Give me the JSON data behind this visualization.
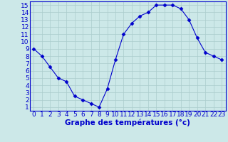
{
  "x": [
    0,
    1,
    2,
    3,
    4,
    5,
    6,
    7,
    8,
    9,
    10,
    11,
    12,
    13,
    14,
    15,
    16,
    17,
    18,
    19,
    20,
    21,
    22,
    23
  ],
  "y": [
    9.0,
    8.0,
    6.5,
    5.0,
    4.5,
    2.5,
    2.0,
    1.5,
    1.0,
    3.5,
    7.5,
    11.0,
    12.5,
    13.5,
    14.0,
    15.0,
    15.0,
    15.0,
    14.5,
    13.0,
    10.5,
    8.5,
    8.0,
    7.5
  ],
  "xlabel": "Graphe des températures (°c)",
  "xlim_min": -0.5,
  "xlim_max": 23.5,
  "ylim_min": 0.5,
  "ylim_max": 15.5,
  "yticks": [
    1,
    2,
    3,
    4,
    5,
    6,
    7,
    8,
    9,
    10,
    11,
    12,
    13,
    14,
    15
  ],
  "xticks": [
    0,
    1,
    2,
    3,
    4,
    5,
    6,
    7,
    8,
    9,
    10,
    11,
    12,
    13,
    14,
    15,
    16,
    17,
    18,
    19,
    20,
    21,
    22,
    23
  ],
  "line_color": "#0000cc",
  "marker": "D",
  "marker_size": 2.5,
  "bg_color": "#cce8e8",
  "grid_color": "#aacccc",
  "axis_label_color": "#0000cc",
  "tick_label_color": "#0000cc",
  "xlabel_fontsize": 7.5,
  "tick_fontsize": 6.5
}
